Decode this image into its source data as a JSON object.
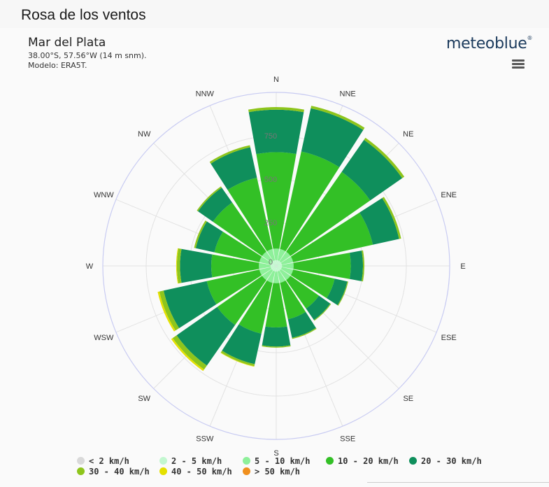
{
  "page": {
    "title": "Rosa de los ventos",
    "brand": "meteoblue",
    "brand_mark": "®"
  },
  "chart_header": {
    "title": "Mar del Plata",
    "location": "38.00°S, 57.56°W (14 m snm).",
    "model": "Modelo: ERA5T."
  },
  "colors": {
    "ring": "#c8cbf2",
    "grid": "#e2e2e2"
  },
  "chart_data": {
    "type": "windrose",
    "directions": [
      "N",
      "NNE",
      "NE",
      "ENE",
      "E",
      "ESE",
      "SE",
      "SSE",
      "S",
      "SSW",
      "SW",
      "WSW",
      "W",
      "WNW",
      "NW",
      "NNW"
    ],
    "radial_ticks": [
      0,
      250,
      500,
      750
    ],
    "radial_max": 1000,
    "legend_position": "bottom",
    "series": [
      {
        "name": "< 2 km/h",
        "color": "#d9d9d9",
        "values": [
          3,
          3,
          3,
          3,
          3,
          3,
          3,
          3,
          3,
          3,
          3,
          3,
          3,
          3,
          3,
          3
        ]
      },
      {
        "name": "2 - 5 km/h",
        "color": "#c3f7d0",
        "values": [
          30,
          30,
          30,
          30,
          30,
          30,
          30,
          30,
          30,
          30,
          30,
          30,
          30,
          30,
          30,
          30
        ]
      },
      {
        "name": "5 - 10 km/h",
        "color": "#8ef09a",
        "values": [
          67,
          67,
          67,
          67,
          67,
          67,
          67,
          67,
          67,
          67,
          67,
          67,
          67,
          67,
          67,
          67
        ]
      },
      {
        "name": "10 - 20 km/h",
        "color": "#33c026",
        "values": [
          555,
          575,
          560,
          470,
          330,
          245,
          200,
          215,
          255,
          300,
          315,
          310,
          275,
          265,
          345,
          420
        ]
      },
      {
        "name": "20 - 30 km/h",
        "color": "#0f8f5c",
        "values": [
          245,
          255,
          225,
          155,
          70,
          75,
          80,
          110,
          110,
          180,
          285,
          255,
          180,
          110,
          105,
          180
        ]
      },
      {
        "name": "30 - 40 km/h",
        "color": "#8ec51c",
        "values": [
          15,
          15,
          15,
          12,
          8,
          5,
          5,
          6,
          6,
          12,
          28,
          25,
          18,
          10,
          8,
          12
        ]
      },
      {
        "name": "40 - 50 km/h",
        "color": "#e4e000",
        "values": [
          0,
          0,
          0,
          0,
          0,
          0,
          0,
          0,
          0,
          3,
          10,
          10,
          4,
          0,
          0,
          0
        ]
      },
      {
        "name": "> 50 km/h",
        "color": "#f0901e",
        "values": [
          0,
          0,
          0,
          0,
          0,
          0,
          0,
          0,
          0,
          0,
          0,
          0,
          0,
          0,
          0,
          0
        ]
      }
    ]
  }
}
